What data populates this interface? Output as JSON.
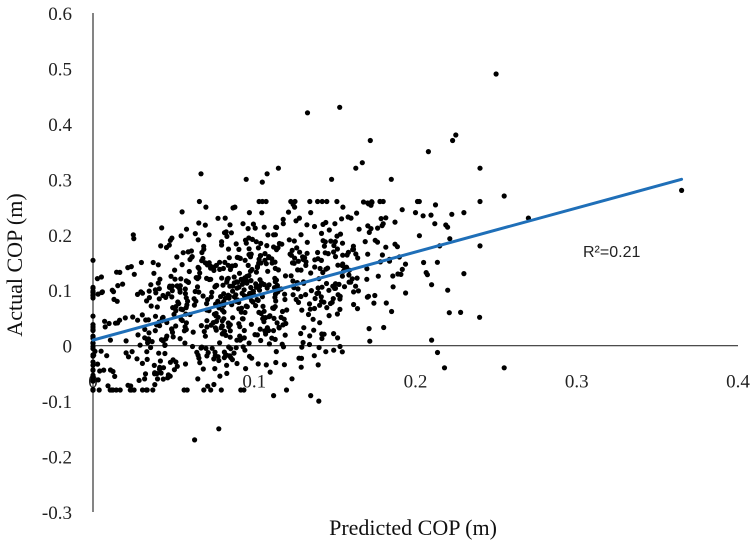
{
  "chart_data": {
    "type": "scatter",
    "title": "",
    "xlabel": "Predicted COP (m)",
    "ylabel": "Actual COP (m)",
    "xlim": [
      0,
      0.4
    ],
    "ylim": [
      -0.3,
      0.6
    ],
    "x_ticks": [
      "0",
      "0.1",
      "0.2",
      "0.3",
      "0.4"
    ],
    "y_ticks": [
      "-0.3",
      "-0.2",
      "-0.1",
      "0",
      "0.1",
      "0.2",
      "0.3",
      "0.4",
      "0.5",
      "0.6"
    ],
    "grid": false,
    "legend": "none",
    "point_color": "#000000",
    "trendline": {
      "x": [
        0.0,
        0.365
      ],
      "y": [
        0.01,
        0.3
      ],
      "color": "#1F6FB8"
    },
    "annotation": "R²=0.21",
    "series": [
      {
        "x": [
          0.25,
          0.153,
          0.133,
          0.225,
          0.223,
          0.172,
          0.208,
          0.24,
          0.115,
          0.108,
          0.167,
          0.163,
          0.148,
          0.185,
          0.105,
          0.095,
          0.067,
          0.365,
          0.27,
          0.255,
          0.23,
          0.212,
          0.2,
          0.18,
          0.215,
          0.23,
          0.21,
          0.22,
          0.228,
          0.205,
          0.19,
          0.025,
          0.012,
          0.015,
          0.005,
          0.21,
          0.255,
          0.218,
          0.14,
          0.135,
          0.063,
          0.078,
          0.112,
          0.12,
          0.065,
          0.075,
          0.083,
          0.048,
          0.04,
          0.032,
          0.022,
          0.125,
          0.128,
          0.118,
          0.103,
          0.097,
          0.112,
          0.07,
          0.03,
          0.042,
          0.058,
          0.072,
          0.093,
          0.135,
          0.15,
          0.155,
          0.165,
          0.175,
          0.16,
          0.145,
          0.088,
          0.082,
          0.048,
          0.052,
          0.02,
          0.01
        ],
        "y": [
          0.49,
          0.43,
          0.42,
          0.38,
          0.37,
          0.37,
          0.35,
          0.32,
          0.32,
          0.31,
          0.33,
          0.32,
          0.3,
          0.3,
          0.295,
          0.3,
          0.31,
          0.28,
          0.23,
          0.27,
          0.24,
          0.22,
          0.24,
          0.22,
          0.18,
          0.13,
          0.11,
          0.1,
          0.06,
          0.15,
          0.16,
          0.2,
          0.1,
          0.08,
          -0.01,
          0.01,
          -0.04,
          -0.04,
          -0.1,
          -0.09,
          -0.17,
          -0.15,
          -0.09,
          -0.08,
          -0.06,
          -0.07,
          -0.05,
          -0.03,
          -0.06,
          -0.06,
          -0.02,
          0.25,
          0.23,
          0.22,
          0.26,
          0.24,
          0.2,
          0.25,
          0.15,
          0.18,
          0.21,
          0.2,
          0.22,
          0.24,
          0.22,
          0.25,
          0.21,
          0.19,
          0.23,
          0.26,
          0.25,
          0.23,
          0.19,
          0.16,
          0.05,
          0.04
        ],
        "cluster": {
          "count": 800,
          "x_center": 0.09,
          "y_center": 0.08,
          "x_spread": 0.055,
          "y_spread": 0.075,
          "x_range": [
            0.0,
            0.24
          ],
          "y_range": [
            -0.08,
            0.26
          ]
        }
      }
    ]
  }
}
